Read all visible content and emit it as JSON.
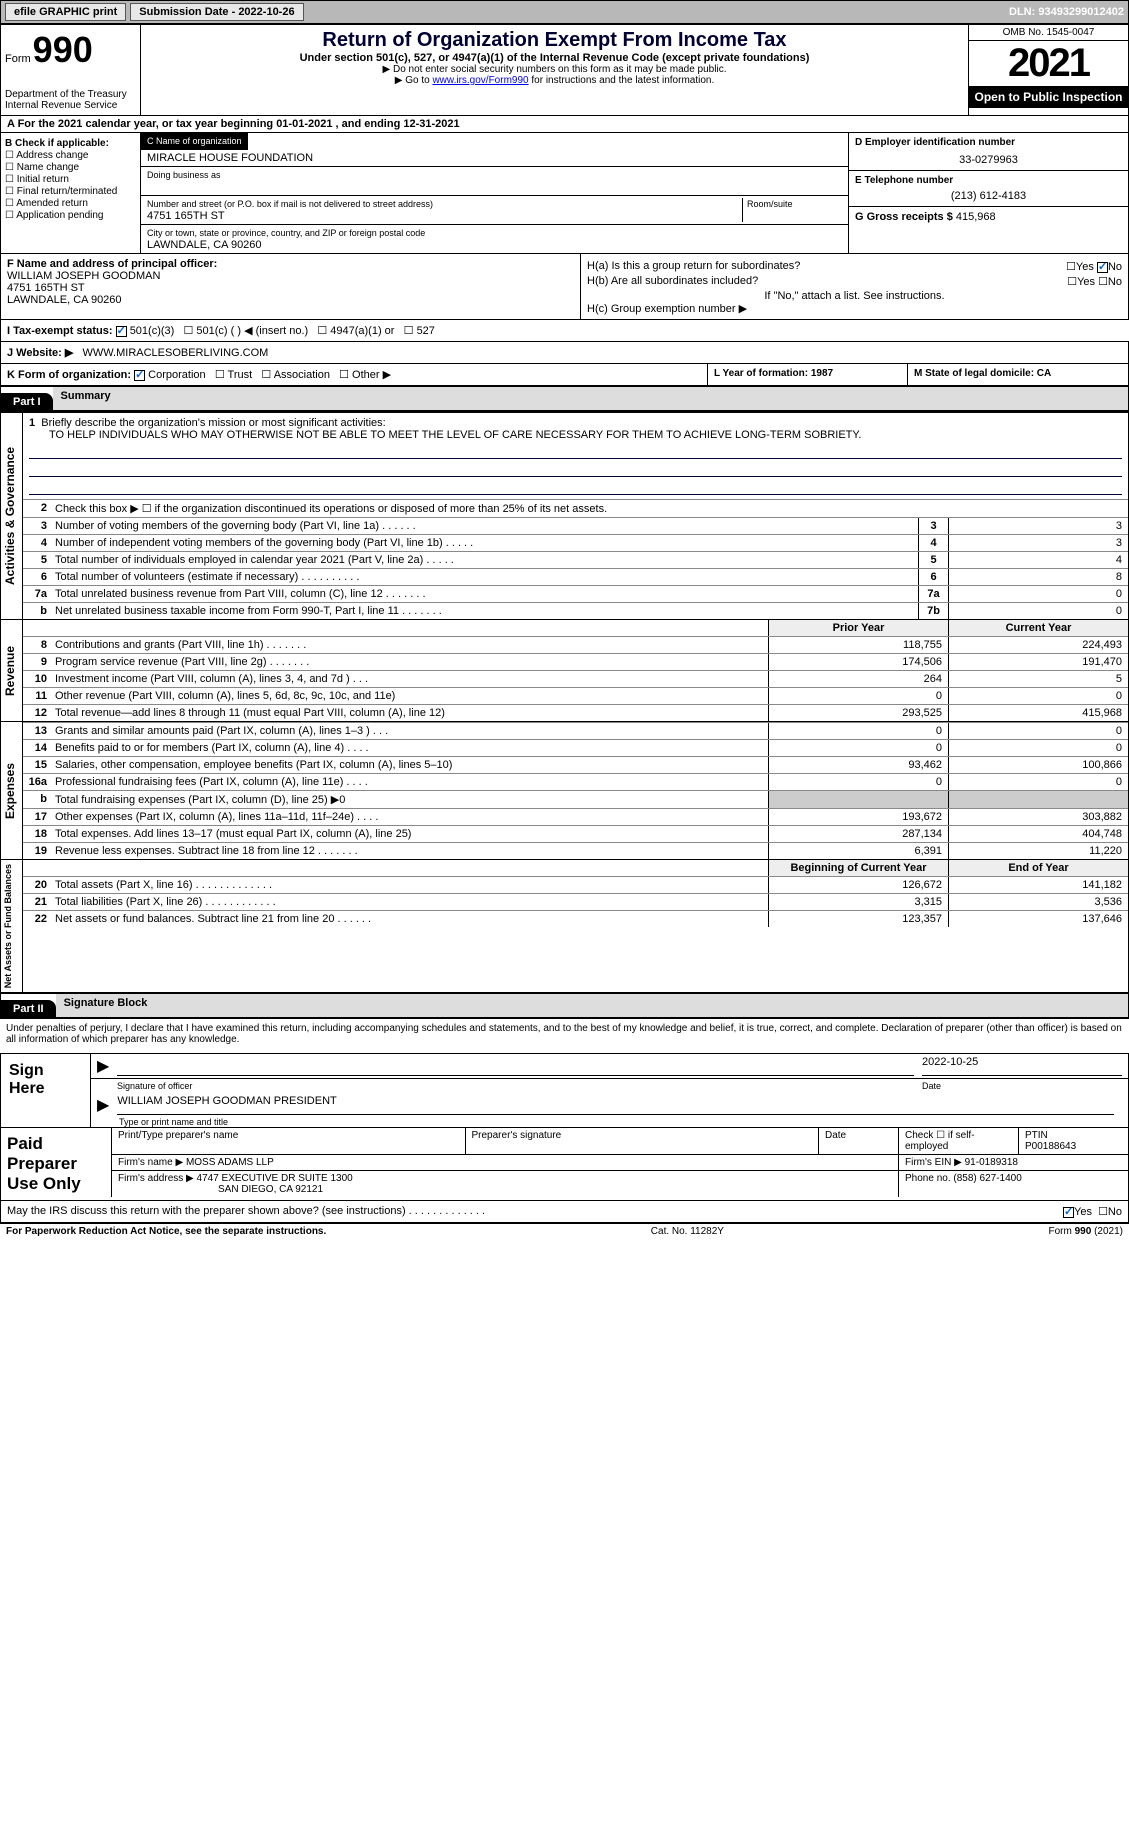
{
  "topbar": {
    "efile": "efile GRAPHIC print",
    "submission": "Submission Date - 2022-10-26",
    "dln": "DLN: 93493299012402"
  },
  "header": {
    "form_label": "Form",
    "form_num": "990",
    "title": "Return of Organization Exempt From Income Tax",
    "subtitle": "Under section 501(c), 527, or 4947(a)(1) of the Internal Revenue Code (except private foundations)",
    "note1": "▶ Do not enter social security numbers on this form as it may be made public.",
    "note2_pre": "▶ Go to ",
    "note2_link": "www.irs.gov/Form990",
    "note2_post": " for instructions and the latest information.",
    "dept": "Department of the Treasury",
    "irs": "Internal Revenue Service",
    "omb": "OMB No. 1545-0047",
    "year": "2021",
    "otp": "Open to Public Inspection"
  },
  "row_a": "A For the 2021 calendar year, or tax year beginning 01-01-2021    , and ending 12-31-2021",
  "col_b": {
    "title": "B Check if applicable:",
    "items": [
      "Address change",
      "Name change",
      "Initial return",
      "Final return/terminated",
      "Amended return",
      "Application pending"
    ]
  },
  "col_c": {
    "name_lbl": "C Name of organization",
    "name": "MIRACLE HOUSE FOUNDATION",
    "dba_lbl": "Doing business as",
    "addr_lbl": "Number and street (or P.O. box if mail is not delivered to street address)",
    "room_lbl": "Room/suite",
    "addr": "4751 165TH ST",
    "city_lbl": "City or town, state or province, country, and ZIP or foreign postal code",
    "city": "LAWNDALE, CA  90260"
  },
  "col_de": {
    "d_lbl": "D Employer identification number",
    "ein": "33-0279963",
    "e_lbl": "E Telephone number",
    "phone": "(213) 612-4183",
    "g_lbl": "G Gross receipts $",
    "gross": "415,968"
  },
  "row_f": {
    "lbl": "F Name and address of principal officer:",
    "name": "WILLIAM JOSEPH GOODMAN",
    "addr1": "4751 165TH ST",
    "addr2": "LAWNDALE, CA  90260"
  },
  "row_h": {
    "ha": "H(a)  Is this a group return for subordinates?",
    "hb": "H(b)  Are all subordinates included?",
    "hb_note": "If \"No,\" attach a list. See instructions.",
    "hc": "H(c)  Group exemption number ▶"
  },
  "row_i": {
    "lbl": "I   Tax-exempt status:",
    "opts": [
      "501(c)(3)",
      "501(c) (   ) ◀ (insert no.)",
      "4947(a)(1) or",
      "527"
    ]
  },
  "row_j": {
    "lbl": "J   Website: ▶",
    "val": "WWW.MIRACLESOBERLIVING.COM"
  },
  "row_k": "K Form of organization:",
  "row_k_opts": [
    "Corporation",
    "Trust",
    "Association",
    "Other ▶"
  ],
  "row_l": "L Year of formation: 1987",
  "row_m": "M State of legal domicile: CA",
  "part1": {
    "hdr": "Part I",
    "title": "Summary",
    "q1": "Briefly describe the organization's mission or most significant activities:",
    "mission": "TO HELP INDIVIDUALS WHO MAY OTHERWISE NOT BE ABLE TO MEET THE LEVEL OF CARE NECESSARY FOR THEM TO ACHIEVE LONG-TERM SOBRIETY.",
    "q2": "Check this box ▶ ☐  if the organization discontinued its operations or disposed of more than 25% of its net assets.",
    "tabs": [
      "Activities & Governance",
      "Revenue",
      "Expenses",
      "Net Assets or Fund Balances"
    ],
    "col_prior": "Prior Year",
    "col_current": "Current Year",
    "col_boy": "Beginning of Current Year",
    "col_eoy": "End of Year",
    "lines_gov": [
      {
        "n": "3",
        "t": "Number of voting members of the governing body (Part VI, line 1a)  .    .    .    .    .    .",
        "box": "3",
        "v": "3"
      },
      {
        "n": "4",
        "t": "Number of independent voting members of the governing body (Part VI, line 1b)   .    .    .    .    .",
        "box": "4",
        "v": "3"
      },
      {
        "n": "5",
        "t": "Total number of individuals employed in calendar year 2021 (Part V, line 2a)   .    .    .    .    .",
        "box": "5",
        "v": "4"
      },
      {
        "n": "6",
        "t": "Total number of volunteers (estimate if necessary)    .    .    .    .    .    .    .    .    .    .",
        "box": "6",
        "v": "8"
      },
      {
        "n": "7a",
        "t": "Total unrelated business revenue from Part VIII, column (C), line 12   .    .    .    .    .    .    .",
        "box": "7a",
        "v": "0"
      },
      {
        "n": "b",
        "t": "Net unrelated business taxable income from Form 990-T, Part I, line 11  .    .    .    .    .    .    .",
        "box": "7b",
        "v": "0"
      }
    ],
    "lines_rev": [
      {
        "n": "8",
        "t": "Contributions and grants (Part VIII, line 1h)   .    .    .    .    .    .    .",
        "p": "118,755",
        "c": "224,493"
      },
      {
        "n": "9",
        "t": "Program service revenue (Part VIII, line 2g)   .    .    .    .    .    .    .",
        "p": "174,506",
        "c": "191,470"
      },
      {
        "n": "10",
        "t": "Investment income (Part VIII, column (A), lines 3, 4, and 7d )    .    .    .",
        "p": "264",
        "c": "5"
      },
      {
        "n": "11",
        "t": "Other revenue (Part VIII, column (A), lines 5, 6d, 8c, 9c, 10c, and 11e)",
        "p": "0",
        "c": "0"
      },
      {
        "n": "12",
        "t": "Total revenue—add lines 8 through 11 (must equal Part VIII, column (A), line 12)",
        "p": "293,525",
        "c": "415,968"
      }
    ],
    "lines_exp": [
      {
        "n": "13",
        "t": "Grants and similar amounts paid (Part IX, column (A), lines 1–3 )   .    .    .",
        "p": "0",
        "c": "0"
      },
      {
        "n": "14",
        "t": "Benefits paid to or for members (Part IX, column (A), line 4)   .    .    .    .",
        "p": "0",
        "c": "0"
      },
      {
        "n": "15",
        "t": "Salaries, other compensation, employee benefits (Part IX, column (A), lines 5–10)",
        "p": "93,462",
        "c": "100,866"
      },
      {
        "n": "16a",
        "t": "Professional fundraising fees (Part IX, column (A), line 11e)   .    .    .    .",
        "p": "0",
        "c": "0"
      },
      {
        "n": "b",
        "t": "Total fundraising expenses (Part IX, column (D), line 25) ▶0",
        "p": "",
        "c": "",
        "shade": true
      },
      {
        "n": "17",
        "t": "Other expenses (Part IX, column (A), lines 11a–11d, 11f–24e)   .    .    .    .",
        "p": "193,672",
        "c": "303,882"
      },
      {
        "n": "18",
        "t": "Total expenses. Add lines 13–17 (must equal Part IX, column (A), line 25)",
        "p": "287,134",
        "c": "404,748"
      },
      {
        "n": "19",
        "t": "Revenue less expenses. Subtract line 18 from line 12 .    .    .    .    .    .    .",
        "p": "6,391",
        "c": "11,220"
      }
    ],
    "lines_net": [
      {
        "n": "20",
        "t": "Total assets (Part X, line 16) .    .    .    .    .    .    .    .    .    .    .    .    .",
        "p": "126,672",
        "c": "141,182"
      },
      {
        "n": "21",
        "t": "Total liabilities (Part X, line 26) .    .    .    .    .    .    .    .    .    .    .    .",
        "p": "3,315",
        "c": "3,536"
      },
      {
        "n": "22",
        "t": "Net assets or fund balances. Subtract line 21 from line 20  .    .    .    .    .    .",
        "p": "123,357",
        "c": "137,646"
      }
    ]
  },
  "part2": {
    "hdr": "Part II",
    "title": "Signature Block",
    "penalty": "Under penalties of perjury, I declare that I have examined this return, including accompanying schedules and statements, and to the best of my knowledge and belief, it is true, correct, and complete. Declaration of preparer (other than officer) is based on all information of which preparer has any knowledge.",
    "sign_here": "Sign Here",
    "sig_officer": "Signature of officer",
    "sig_date": "2022-10-25",
    "date_lbl": "Date",
    "officer_name": "WILLIAM JOSEPH GOODMAN  PRESIDENT",
    "type_lbl": "Type or print name and title",
    "paid": "Paid Preparer Use Only",
    "prep_name_lbl": "Print/Type preparer's name",
    "prep_sig_lbl": "Preparer's signature",
    "prep_date_lbl": "Date",
    "check_self": "Check ☐ if self-employed",
    "ptin_lbl": "PTIN",
    "ptin": "P00188643",
    "firm_name_lbl": "Firm's name    ▶",
    "firm_name": "MOSS ADAMS LLP",
    "firm_ein_lbl": "Firm's EIN ▶",
    "firm_ein": "91-0189318",
    "firm_addr_lbl": "Firm's address ▶",
    "firm_addr": "4747 EXECUTIVE DR SUITE 1300",
    "firm_city": "SAN DIEGO, CA  92121",
    "phone_lbl": "Phone no.",
    "phone": "(858) 627-1400",
    "discuss": "May the IRS discuss this return with the preparer shown above? (see instructions)   .    .    .    .    .    .    .    .    .    .    .    .    ."
  },
  "footer": {
    "pra": "For Paperwork Reduction Act Notice, see the separate instructions.",
    "cat": "Cat. No. 11282Y",
    "form": "Form 990 (2021)"
  }
}
